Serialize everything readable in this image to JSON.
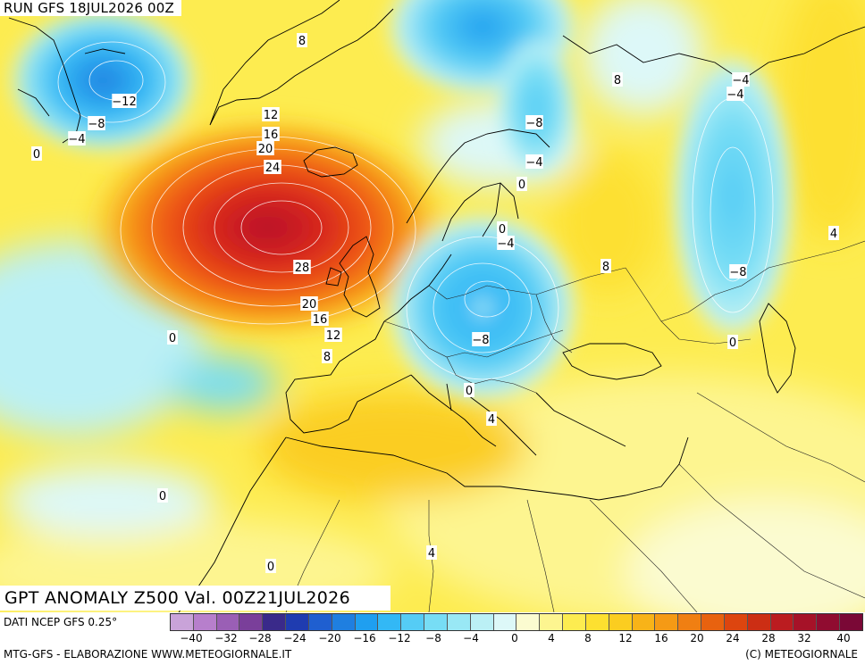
{
  "header": {
    "run": "RUN GFS 18JUL2026 00Z"
  },
  "product": {
    "title": "GPT ANOMALY Z500 Val. 00Z21JUL2026"
  },
  "footer": {
    "data_source": "DATI NCEP GFS 0.25°",
    "credit_left": "MTG-GFS - ELABORAZIONE WWW.METEOGIORNALE.IT",
    "credit_right": "(C) METEOGIORNALE"
  },
  "scale": {
    "colors": [
      "#c9a3d9",
      "#b77fcc",
      "#9a5fb5",
      "#7a3f9a",
      "#3a2a8a",
      "#1f3cb0",
      "#1f5fd0",
      "#1f7fe0",
      "#1f9ff0",
      "#33b8f5",
      "#55ccf5",
      "#77ddf5",
      "#99e8f5",
      "#bbf0f5",
      "#ddf8f8",
      "#fbfbd0",
      "#fdf590",
      "#fdec50",
      "#fde030",
      "#fbcd20",
      "#f8b318",
      "#f59a15",
      "#f07f12",
      "#e8620f",
      "#dd450f",
      "#cc2e14",
      "#bb1c20",
      "#a61228",
      "#900c30",
      "#7a0836"
    ],
    "tick_values": [
      "-40",
      "-32",
      "-28",
      "-24",
      "-20",
      "-16",
      "-12",
      "-8",
      "-4",
      "0",
      "4",
      "8",
      "12",
      "16",
      "20",
      "24",
      "28",
      "32",
      "40"
    ]
  },
  "contour_labels": [
    {
      "text": "8",
      "name": "label-8-greenland-north"
    },
    {
      "text": "-12",
      "name": "label-m12-canada"
    },
    {
      "text": "-8",
      "name": "label-m8-canada"
    },
    {
      "text": "-4",
      "name": "label-m4-canada"
    },
    {
      "text": "0",
      "name": "label-0-atlantic-nw"
    },
    {
      "text": "12",
      "name": "label-12-iceland-north"
    },
    {
      "text": "16",
      "name": "label-16-iceland"
    },
    {
      "text": "20",
      "name": "label-20-iceland"
    },
    {
      "text": "24",
      "name": "label-24-iceland"
    },
    {
      "text": "28",
      "name": "label-28-high-center"
    },
    {
      "text": "20",
      "name": "label-20-scotland"
    },
    {
      "text": "16",
      "name": "label-16-uk"
    },
    {
      "text": "12",
      "name": "label-12-uk-south"
    },
    {
      "text": "8",
      "name": "label-8-biscay"
    },
    {
      "text": "0",
      "name": "label-0-atlantic-mid"
    },
    {
      "text": "0",
      "name": "label-0-atlantic-south"
    },
    {
      "text": "0",
      "name": "label-0-canaries"
    },
    {
      "text": "-8",
      "name": "label-m8-svalbard"
    },
    {
      "text": "-4",
      "name": "label-m4-barents"
    },
    {
      "text": "0",
      "name": "label-0-scandinavia"
    },
    {
      "text": "8",
      "name": "label-8-russia-north"
    },
    {
      "text": "0",
      "name": "label-0-baltic"
    },
    {
      "text": "-4",
      "name": "label-m4-baltic"
    },
    {
      "text": "-8",
      "name": "label-m8-hungary"
    },
    {
      "text": "0",
      "name": "label-0-balkans"
    },
    {
      "text": "4",
      "name": "label-4-italy-south"
    },
    {
      "text": "8",
      "name": "label-8-russia"
    },
    {
      "text": "-4",
      "name": "label-m4-urals-a"
    },
    {
      "text": "-4",
      "name": "label-m4-urals-b"
    },
    {
      "text": "-8",
      "name": "label-m8-caspian"
    },
    {
      "text": "0",
      "name": "label-0-caucasus"
    },
    {
      "text": "4",
      "name": "label-4-kazakhstan"
    },
    {
      "text": "4",
      "name": "label-4-sahara"
    }
  ]
}
